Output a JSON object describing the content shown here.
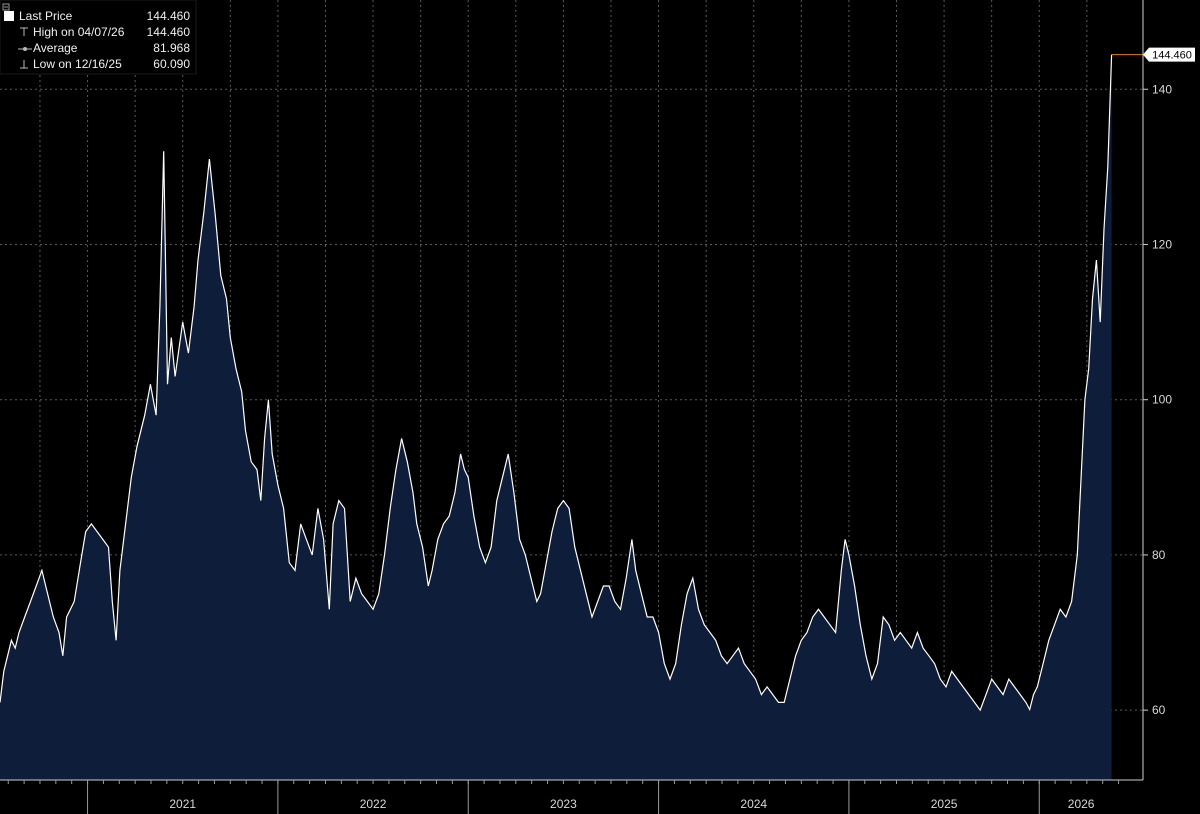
{
  "chart_data": {
    "type": "area",
    "title": "",
    "xlabel": "",
    "ylabel": "",
    "ylim": [
      51,
      151.5
    ],
    "xlim": [
      2020.54,
      2026.44
    ],
    "y_ticks": [
      60,
      80,
      100,
      120,
      140
    ],
    "x_tick_labels": [
      {
        "label": "2021",
        "year": 2021
      },
      {
        "label": "2022",
        "year": 2022
      },
      {
        "label": "2023",
        "year": 2023
      },
      {
        "label": "2024",
        "year": 2024
      },
      {
        "label": "2025",
        "year": 2025
      },
      {
        "label": "2026",
        "year": 2026
      }
    ],
    "grid": true,
    "legend_position": "top-left",
    "legend": [
      {
        "label": "Last Price",
        "value": "144.460"
      },
      {
        "label": "High on 04/07/26",
        "value": "144.460"
      },
      {
        "label": "Average",
        "value": "81.968"
      },
      {
        "label": "Low on 12/16/25",
        "value": "60.090"
      }
    ],
    "last_price": 144.46,
    "last_price_label": "144.460",
    "high": 144.46,
    "average": 81.968,
    "low": 60.09,
    "colors": {
      "background": "#000000",
      "area_fill": "#0d1d3a",
      "line": "#ffffff",
      "grid": "#5a5a5a",
      "last_price_marker": "#e07a28"
    },
    "series": [
      {
        "name": "Last Price",
        "points": [
          [
            2020.54,
            61
          ],
          [
            2020.56,
            65
          ],
          [
            2020.58,
            67
          ],
          [
            2020.6,
            69
          ],
          [
            2020.62,
            68
          ],
          [
            2020.64,
            70
          ],
          [
            2020.67,
            72
          ],
          [
            2020.7,
            74
          ],
          [
            2020.73,
            76
          ],
          [
            2020.76,
            78
          ],
          [
            2020.78,
            76
          ],
          [
            2020.8,
            74
          ],
          [
            2020.82,
            72
          ],
          [
            2020.85,
            70
          ],
          [
            2020.87,
            67
          ],
          [
            2020.89,
            72
          ],
          [
            2020.91,
            73
          ],
          [
            2020.93,
            74
          ],
          [
            2020.95,
            77
          ],
          [
            2020.97,
            80
          ],
          [
            2020.99,
            83
          ],
          [
            2021.02,
            84
          ],
          [
            2021.05,
            83
          ],
          [
            2021.08,
            82
          ],
          [
            2021.11,
            81
          ],
          [
            2021.13,
            74
          ],
          [
            2021.15,
            69
          ],
          [
            2021.17,
            78
          ],
          [
            2021.2,
            84
          ],
          [
            2021.23,
            90
          ],
          [
            2021.26,
            94
          ],
          [
            2021.3,
            98
          ],
          [
            2021.33,
            102
          ],
          [
            2021.36,
            98
          ],
          [
            2021.38,
            112
          ],
          [
            2021.4,
            132
          ],
          [
            2021.42,
            102
          ],
          [
            2021.44,
            108
          ],
          [
            2021.46,
            103
          ],
          [
            2021.5,
            110
          ],
          [
            2021.53,
            106
          ],
          [
            2021.56,
            112
          ],
          [
            2021.58,
            118
          ],
          [
            2021.61,
            124
          ],
          [
            2021.64,
            131
          ],
          [
            2021.67,
            124
          ],
          [
            2021.7,
            116
          ],
          [
            2021.73,
            113
          ],
          [
            2021.75,
            108
          ],
          [
            2021.78,
            104
          ],
          [
            2021.81,
            101
          ],
          [
            2021.83,
            96
          ],
          [
            2021.86,
            92
          ],
          [
            2021.89,
            91
          ],
          [
            2021.91,
            87
          ],
          [
            2021.93,
            95
          ],
          [
            2021.95,
            100
          ],
          [
            2021.97,
            93
          ],
          [
            2022.0,
            89
          ],
          [
            2022.03,
            86
          ],
          [
            2022.06,
            79
          ],
          [
            2022.09,
            78
          ],
          [
            2022.12,
            84
          ],
          [
            2022.15,
            82
          ],
          [
            2022.18,
            80
          ],
          [
            2022.21,
            86
          ],
          [
            2022.24,
            82
          ],
          [
            2022.27,
            73
          ],
          [
            2022.29,
            84
          ],
          [
            2022.32,
            87
          ],
          [
            2022.35,
            86
          ],
          [
            2022.38,
            74
          ],
          [
            2022.41,
            77
          ],
          [
            2022.44,
            75
          ],
          [
            2022.47,
            74
          ],
          [
            2022.5,
            73
          ],
          [
            2022.53,
            75
          ],
          [
            2022.56,
            80
          ],
          [
            2022.59,
            86
          ],
          [
            2022.62,
            91
          ],
          [
            2022.65,
            95
          ],
          [
            2022.68,
            92
          ],
          [
            2022.71,
            88
          ],
          [
            2022.73,
            84
          ],
          [
            2022.76,
            81
          ],
          [
            2022.79,
            76
          ],
          [
            2022.81,
            78
          ],
          [
            2022.84,
            82
          ],
          [
            2022.87,
            84
          ],
          [
            2022.9,
            85
          ],
          [
            2022.93,
            88
          ],
          [
            2022.96,
            93
          ],
          [
            2022.98,
            91
          ],
          [
            2023.0,
            90
          ],
          [
            2023.03,
            85
          ],
          [
            2023.06,
            81
          ],
          [
            2023.09,
            79
          ],
          [
            2023.12,
            81
          ],
          [
            2023.15,
            87
          ],
          [
            2023.18,
            90
          ],
          [
            2023.21,
            93
          ],
          [
            2023.24,
            88
          ],
          [
            2023.27,
            82
          ],
          [
            2023.3,
            80
          ],
          [
            2023.33,
            77
          ],
          [
            2023.36,
            74
          ],
          [
            2023.38,
            75
          ],
          [
            2023.41,
            79
          ],
          [
            2023.44,
            83
          ],
          [
            2023.47,
            86
          ],
          [
            2023.5,
            87
          ],
          [
            2023.53,
            86
          ],
          [
            2023.56,
            81
          ],
          [
            2023.59,
            78
          ],
          [
            2023.62,
            75
          ],
          [
            2023.65,
            72
          ],
          [
            2023.68,
            74
          ],
          [
            2023.71,
            76
          ],
          [
            2023.74,
            76
          ],
          [
            2023.77,
            74
          ],
          [
            2023.8,
            73
          ],
          [
            2023.83,
            77
          ],
          [
            2023.86,
            82
          ],
          [
            2023.88,
            78
          ],
          [
            2023.91,
            75
          ],
          [
            2023.94,
            72
          ],
          [
            2023.97,
            72
          ],
          [
            2024.0,
            70
          ],
          [
            2024.03,
            66
          ],
          [
            2024.06,
            64
          ],
          [
            2024.09,
            66
          ],
          [
            2024.12,
            71
          ],
          [
            2024.15,
            75
          ],
          [
            2024.18,
            77
          ],
          [
            2024.21,
            73
          ],
          [
            2024.24,
            71
          ],
          [
            2024.27,
            70
          ],
          [
            2024.3,
            69
          ],
          [
            2024.33,
            67
          ],
          [
            2024.36,
            66
          ],
          [
            2024.39,
            67
          ],
          [
            2024.42,
            68
          ],
          [
            2024.45,
            66
          ],
          [
            2024.48,
            65
          ],
          [
            2024.51,
            64
          ],
          [
            2024.54,
            62
          ],
          [
            2024.57,
            63
          ],
          [
            2024.6,
            62
          ],
          [
            2024.63,
            61
          ],
          [
            2024.66,
            61
          ],
          [
            2024.69,
            64
          ],
          [
            2024.72,
            67
          ],
          [
            2024.75,
            69
          ],
          [
            2024.78,
            70
          ],
          [
            2024.81,
            72
          ],
          [
            2024.84,
            73
          ],
          [
            2024.87,
            72
          ],
          [
            2024.9,
            71
          ],
          [
            2024.93,
            70
          ],
          [
            2024.96,
            78
          ],
          [
            2024.98,
            82
          ],
          [
            2025.0,
            80
          ],
          [
            2025.03,
            76
          ],
          [
            2025.06,
            71
          ],
          [
            2025.09,
            67
          ],
          [
            2025.12,
            64
          ],
          [
            2025.15,
            66
          ],
          [
            2025.18,
            72
          ],
          [
            2025.21,
            71
          ],
          [
            2025.24,
            69
          ],
          [
            2025.27,
            70
          ],
          [
            2025.3,
            69
          ],
          [
            2025.33,
            68
          ],
          [
            2025.36,
            70
          ],
          [
            2025.39,
            68
          ],
          [
            2025.42,
            67
          ],
          [
            2025.45,
            66
          ],
          [
            2025.48,
            64
          ],
          [
            2025.51,
            63
          ],
          [
            2025.54,
            65
          ],
          [
            2025.57,
            64
          ],
          [
            2025.6,
            63
          ],
          [
            2025.63,
            62
          ],
          [
            2025.66,
            61
          ],
          [
            2025.69,
            60
          ],
          [
            2025.72,
            62
          ],
          [
            2025.75,
            64
          ],
          [
            2025.78,
            63
          ],
          [
            2025.81,
            62
          ],
          [
            2025.84,
            64
          ],
          [
            2025.87,
            63
          ],
          [
            2025.9,
            62
          ],
          [
            2025.93,
            61
          ],
          [
            2025.95,
            60.09
          ],
          [
            2025.97,
            62
          ],
          [
            2025.99,
            63
          ],
          [
            2026.02,
            66
          ],
          [
            2026.05,
            69
          ],
          [
            2026.08,
            71
          ],
          [
            2026.11,
            73
          ],
          [
            2026.14,
            72
          ],
          [
            2026.17,
            74
          ],
          [
            2026.2,
            80
          ],
          [
            2026.22,
            90
          ],
          [
            2026.24,
            100
          ],
          [
            2026.26,
            104
          ],
          [
            2026.28,
            113
          ],
          [
            2026.3,
            118
          ],
          [
            2026.32,
            110
          ],
          [
            2026.34,
            122
          ],
          [
            2026.36,
            130
          ],
          [
            2026.38,
            144.46
          ]
        ]
      }
    ]
  }
}
